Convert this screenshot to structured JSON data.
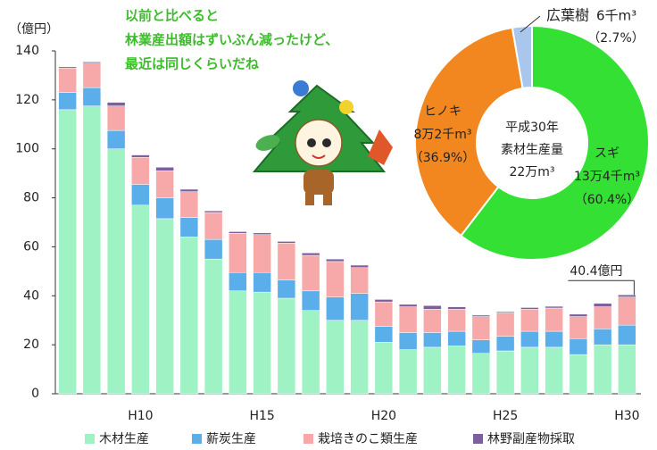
{
  "chart_data": [
    {
      "type": "bar",
      "stacked": true,
      "grid": false,
      "ylabel": "（億円）",
      "note": [
        "以前と比べると",
        "林業産出額はずいぶん減ったけど、",
        "最近は同じくらいだね"
      ],
      "total_label": "40.4億円",
      "categories": [
        null,
        null,
        null,
        "H10",
        null,
        null,
        null,
        null,
        "H15",
        null,
        null,
        null,
        null,
        "H20",
        null,
        null,
        null,
        null,
        "H25",
        null,
        null,
        null,
        null,
        "H30"
      ],
      "series": [
        {
          "name": "木材生産",
          "color": "#9ef2c4",
          "values": [
            116,
            117.5,
            100,
            77,
            71.5,
            64,
            55,
            42,
            41.5,
            39,
            34,
            30,
            30,
            21,
            18,
            19,
            19.5,
            16.5,
            17.5,
            19,
            19,
            16,
            20,
            20
          ]
        },
        {
          "name": "薪炭生産",
          "color": "#5aaeea",
          "values": [
            7,
            7.5,
            7.5,
            8.5,
            8.5,
            8,
            8,
            7.5,
            8,
            7.5,
            8,
            9.5,
            11,
            6.5,
            7,
            6,
            6,
            5.5,
            6,
            6.5,
            6.5,
            6.5,
            6.5,
            8
          ]
        },
        {
          "name": "栽培きのこ類生産",
          "color": "#f7a9aa",
          "values": [
            10,
            10,
            10,
            11,
            11,
            10.5,
            11,
            16,
            15.5,
            15,
            14.5,
            14.5,
            10.5,
            10,
            10.5,
            9.5,
            9,
            9.5,
            9.5,
            9,
            9.5,
            9,
            9,
            11.5
          ]
        },
        {
          "name": "林野副産物採取",
          "color": "#7e5f9e",
          "values": [
            0.5,
            0.5,
            1.5,
            1,
            1.5,
            1,
            0.7,
            0.7,
            0.7,
            0.7,
            1,
            1,
            1,
            1,
            1,
            1.5,
            1,
            0.6,
            0.5,
            0.7,
            0.7,
            1,
            1.4,
            0.9
          ]
        }
      ],
      "ylim": [
        0,
        140
      ],
      "yticks": [
        0,
        20,
        40,
        60,
        80,
        100,
        120,
        140
      ]
    },
    {
      "type": "pie",
      "donut": true,
      "center_text": [
        "平成30年",
        "素材生産量",
        "22万m³"
      ],
      "categories": [
        "スギ",
        "ヒノキ",
        "広葉樹"
      ],
      "amount_labels": [
        "13万4千m³",
        "8万2千m³",
        "6千m³"
      ],
      "values": [
        60.4,
        36.9,
        2.7
      ],
      "value_labels": [
        "（60.4%）",
        "（36.9%）",
        "（2.7%）"
      ],
      "colors": [
        "#33e033",
        "#f2871f",
        "#a9c6ec"
      ]
    }
  ]
}
